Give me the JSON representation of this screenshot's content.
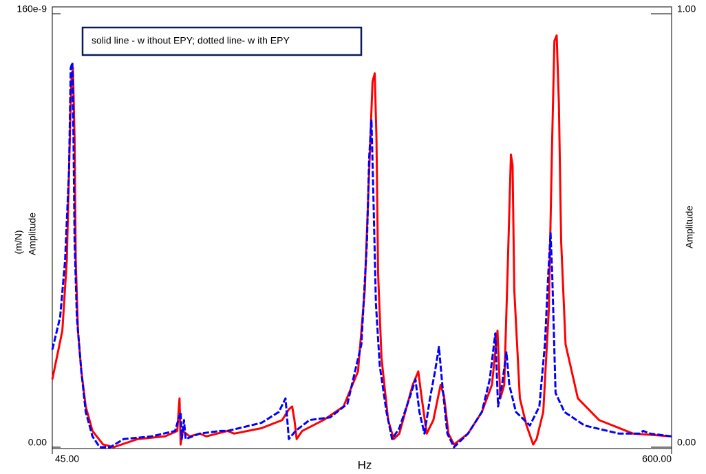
{
  "chart_data": {
    "type": "line",
    "legend_text": "solid line - w ithout  EPY; dotted line- w ith EPY",
    "x_label": "Hz",
    "y_label_lines": [
      "(m/N)",
      "Amplitude"
    ],
    "y2_label": "Amplitude",
    "xlim": [
      45,
      600
    ],
    "xticks": [
      {
        "value": 45,
        "label": "45.00"
      },
      {
        "value": 600,
        "label": "600.00"
      }
    ],
    "ylim": [
      0,
      1.6e-07
    ],
    "yticks": [
      {
        "value": 0,
        "label": "0.00"
      },
      {
        "value": 1.6e-07,
        "label": "160e-9"
      }
    ],
    "y2lim": [
      0,
      1
    ],
    "y2ticks": [
      {
        "value": 0,
        "label": "0.00"
      },
      {
        "value": 1,
        "label": "1.00"
      }
    ],
    "series": [
      {
        "color": "#ff0000",
        "line_style": "solid",
        "x": [
          45,
          54,
          58,
          60,
          62,
          63.5,
          65,
          66,
          68,
          71,
          75,
          81,
          90.5,
          100,
          121.5,
          146,
          157,
          159,
          160,
          162,
          168,
          177,
          183,
          202,
          208,
          232.5,
          251,
          257,
          260,
          262,
          264,
          269,
          288,
          306,
          319,
          325,
          329,
          332,
          334,
          335.5,
          337,
          340,
          346,
          351,
          356,
          368,
          373,
          375.5,
          380.5,
          386.5,
          393,
          396,
          400,
          405,
          417.5,
          430,
          439,
          444,
          446.5,
          450,
          453,
          456,
          457.5,
          459,
          464,
          470,
          476,
          479,
          485,
          490,
          493,
          495,
          497,
          499,
          501,
          505,
          516,
          535,
          565.5,
          600
        ],
        "values": [
          2.5e-08,
          4.3e-08,
          6.9e-08,
          1.02e-07,
          1.35e-07,
          1.4e-07,
          1.14e-07,
          6.9e-08,
          4.3e-08,
          2.8e-08,
          1.5e-08,
          6e-09,
          1e-09,
          0,
          3e-09,
          4e-09,
          6e-09,
          1.8e-08,
          1e-09,
          6e-09,
          4e-09,
          5e-09,
          4e-09,
          6e-09,
          5e-09,
          7e-09,
          1e-08,
          1.4e-08,
          1.5e-08,
          1e-08,
          3e-09,
          6e-09,
          1e-08,
          1.5e-08,
          2.8e-08,
          5.8e-08,
          1.02e-07,
          1.35e-07,
          1.38e-07,
          1.14e-07,
          6.4e-08,
          3.3e-08,
          1e-08,
          3e-09,
          5e-09,
          2.3e-08,
          2.8e-08,
          2e-08,
          5e-09,
          1e-08,
          2.3e-08,
          1.9e-08,
          5e-09,
          1e-09,
          5e-09,
          1.3e-08,
          2.3e-08,
          4.3e-08,
          1.8e-08,
          2.3e-08,
          6.4e-08,
          1.08e-07,
          1.04e-07,
          5.8e-08,
          1.8e-08,
          8e-09,
          1e-09,
          3e-09,
          1.3e-08,
          5.1e-08,
          1.14e-07,
          1.5e-07,
          1.52e-07,
          1.27e-07,
          7.6e-08,
          3.8e-08,
          1.8e-08,
          1e-08,
          5e-09,
          4e-09
        ]
      },
      {
        "color": "#0000ff",
        "line_style": "dashed",
        "x": [
          45,
          52,
          56.5,
          60,
          61.5,
          63,
          64,
          65,
          67,
          71,
          75,
          81,
          87.5,
          97,
          109,
          134,
          155,
          160,
          161,
          163,
          164.5,
          177,
          195.5,
          202,
          232.5,
          248,
          254,
          257,
          263,
          275.5,
          294,
          309.5,
          322,
          327,
          329,
          331,
          333,
          335,
          338.5,
          344.5,
          349.5,
          356,
          365,
          370.5,
          374,
          378.5,
          383.5,
          388,
          391.5,
          394.5,
          399,
          405,
          417.5,
          430,
          437,
          442,
          444.5,
          448,
          452,
          454.5,
          460.5,
          473,
          481.5,
          486.5,
          489.5,
          491.5,
          493,
          496,
          504,
          522,
          553,
          571.5,
          574.5,
          581,
          600
        ],
        "values": [
          3.6e-08,
          4.8e-08,
          6.9e-08,
          1.02e-07,
          1.4e-07,
          1.42e-07,
          1.14e-07,
          7.6e-08,
          4.8e-08,
          2.8e-08,
          1.3e-08,
          4e-09,
          0,
          0,
          3e-09,
          4e-09,
          6e-09,
          1.3e-08,
          3e-09,
          1e-08,
          3e-09,
          5e-09,
          6e-09,
          6e-09,
          9e-09,
          1.3e-08,
          1.8e-08,
          3e-09,
          6e-09,
          1e-08,
          1.1e-08,
          1.6e-08,
          3.8e-08,
          7.6e-08,
          1.07e-07,
          1.21e-07,
          8.9e-08,
          5.3e-08,
          3e-08,
          1.3e-08,
          3e-09,
          7e-09,
          1.8e-08,
          2.5e-08,
          1.3e-08,
          5e-09,
          1.8e-08,
          2.8e-08,
          3.7e-08,
          2.3e-08,
          5e-09,
          0,
          5e-09,
          1.3e-08,
          2.5e-08,
          4.2e-08,
          1.5e-08,
          2.3e-08,
          3.5e-08,
          2.3e-08,
          1.3e-08,
          8e-09,
          1.5e-08,
          3.8e-08,
          6.4e-08,
          7.9e-08,
          6.4e-08,
          2e-08,
          1.3e-08,
          8e-09,
          5e-09,
          5e-09,
          6e-09,
          5e-09,
          4e-09
        ]
      }
    ]
  }
}
